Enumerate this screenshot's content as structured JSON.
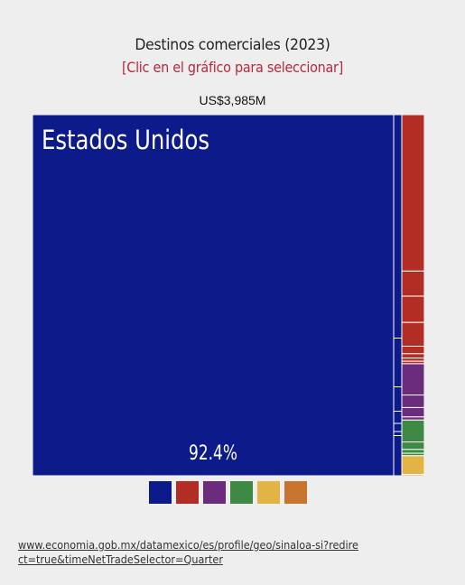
{
  "header": {
    "title": "Destinos comerciales (2023)",
    "subtitle": "[Clic en el gráfico para seleccionar]",
    "total": "US$3,985M"
  },
  "chart_data": {
    "type": "treemap",
    "total_label": "US$3,985M",
    "leaves": [
      {
        "name": "Estados Unidos",
        "continent": "na",
        "share": 92.4,
        "label": "Estados Unidos",
        "pct_label": "92.4%"
      },
      {
        "name": "",
        "continent": "na",
        "share": 0.55
      },
      {
        "name": "",
        "continent": "na",
        "share": 0.12
      },
      {
        "name": "",
        "continent": "na",
        "share": 0.06
      },
      {
        "name": "",
        "continent": "na",
        "share": 0.03
      },
      {
        "name": "",
        "continent": "na",
        "share": 0.02
      },
      {
        "name": "",
        "continent": "na",
        "share": 0.01
      },
      {
        "name": "",
        "continent": "na",
        "share": 0.01
      },
      {
        "name": "",
        "continent": "sa",
        "share": 2.5
      },
      {
        "name": "",
        "continent": "sa",
        "share": 0.4
      },
      {
        "name": "",
        "continent": "sa",
        "share": 0.42
      },
      {
        "name": "",
        "continent": "sa",
        "share": 0.38
      },
      {
        "name": "",
        "continent": "sa",
        "share": 0.12
      },
      {
        "name": "",
        "continent": "sa",
        "share": 0.07
      },
      {
        "name": "",
        "continent": "sa",
        "share": 0.05
      },
      {
        "name": "",
        "continent": "sa",
        "share": 0.04
      },
      {
        "name": "",
        "continent": "as",
        "share": 0.5
      },
      {
        "name": "",
        "continent": "as",
        "share": 0.2
      },
      {
        "name": "",
        "continent": "as",
        "share": 0.15
      },
      {
        "name": "",
        "continent": "as",
        "share": 0.05
      },
      {
        "name": "",
        "continent": "eu",
        "share": 0.35
      },
      {
        "name": "",
        "continent": "eu",
        "share": 0.12
      },
      {
        "name": "",
        "continent": "eu",
        "share": 0.06
      },
      {
        "name": "",
        "continent": "eu",
        "share": 0.04
      },
      {
        "name": "",
        "continent": "af",
        "share": 0.3
      },
      {
        "name": "",
        "continent": "oc",
        "share": 0.02
      }
    ],
    "legend": [
      {
        "key": "na",
        "color": "#0d1b8a"
      },
      {
        "key": "sa",
        "color": "#b22e25"
      },
      {
        "key": "as",
        "color": "#6b2c7e"
      },
      {
        "key": "eu",
        "color": "#3e8a45"
      },
      {
        "key": "af",
        "color": "#e3b445"
      },
      {
        "key": "oc",
        "color": "#c8752f"
      }
    ]
  },
  "footer": {
    "source_url": "www.economia.gob.mx/datamexico/es/profile/geo/sinaloa-si?redirect=true&timeNetTradeSelector=Quarter"
  }
}
